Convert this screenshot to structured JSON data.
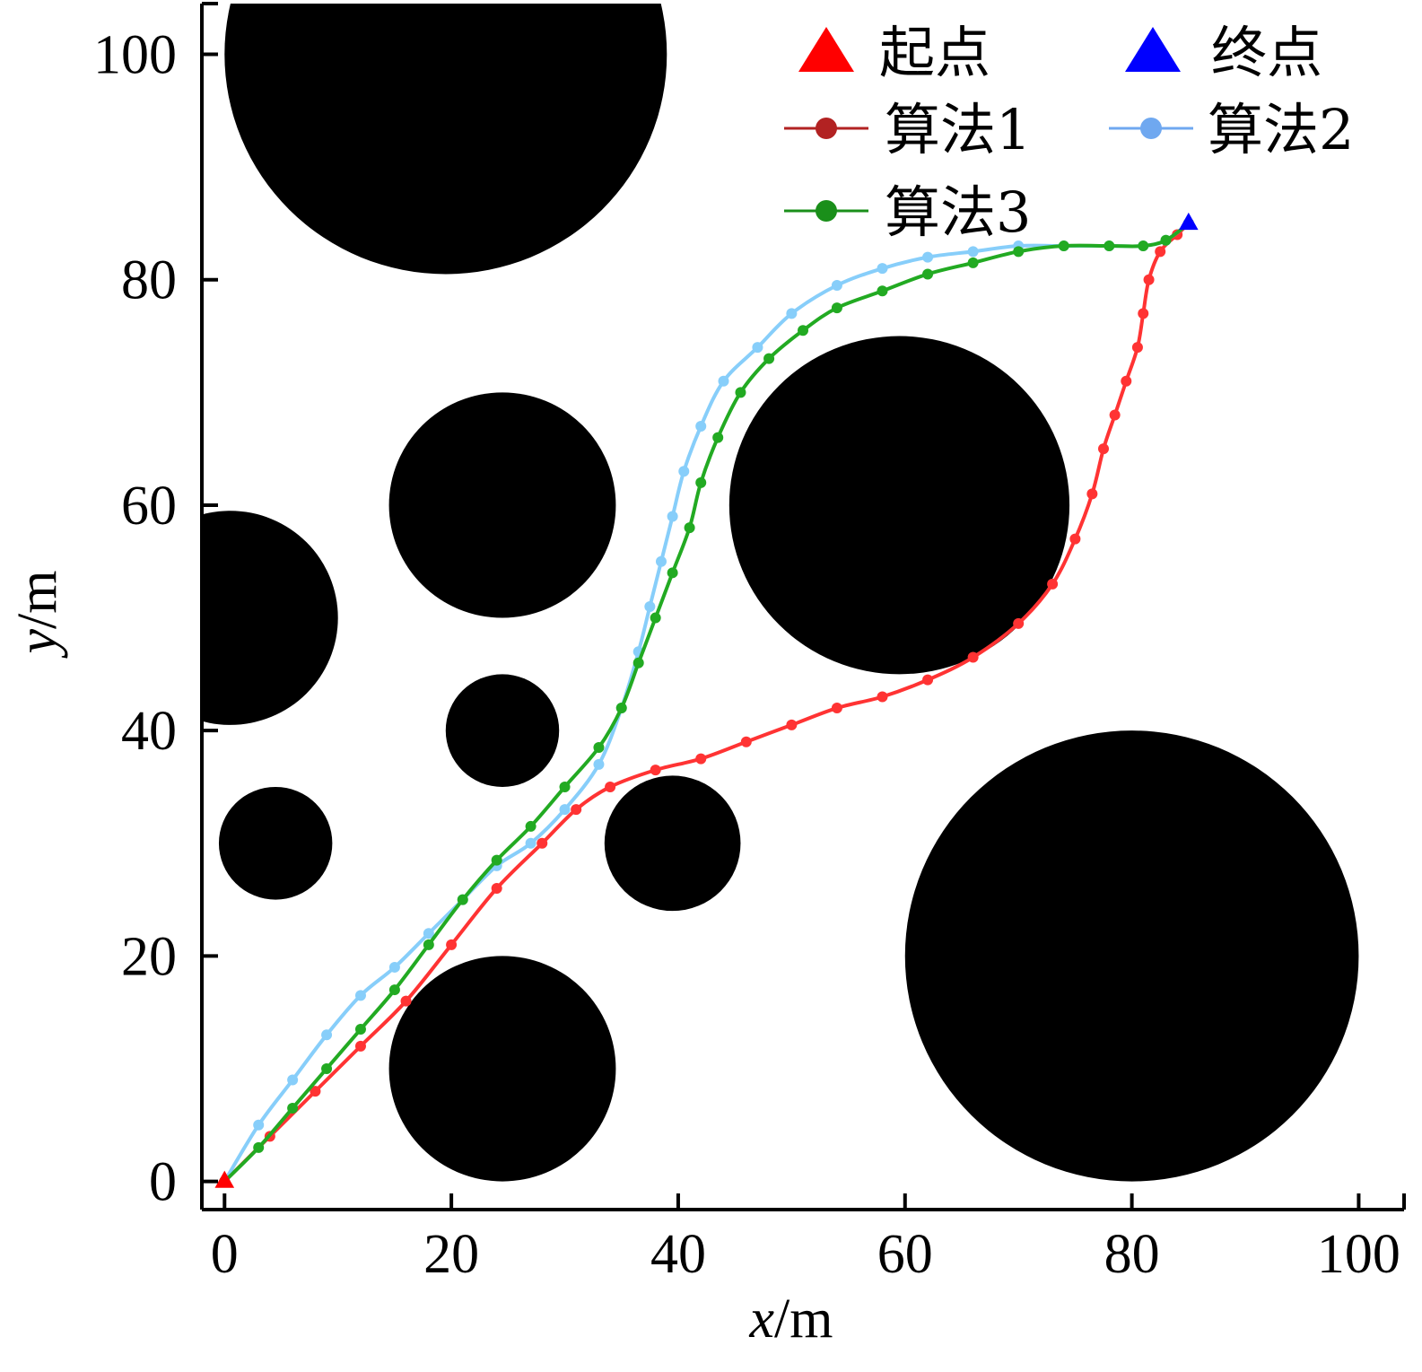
{
  "chart_data": {
    "type": "line",
    "xlabel": {
      "var": "x",
      "unit": "/m"
    },
    "ylabel": {
      "var": "y",
      "unit": "/m"
    },
    "xlim": [
      -2,
      104
    ],
    "ylim": [
      -2.5,
      104.5
    ],
    "xticks": [
      0,
      20,
      40,
      60,
      80,
      100
    ],
    "yticks": [
      0,
      20,
      40,
      60,
      80,
      100
    ],
    "xtick_labels": [
      "0",
      "20",
      "40",
      "60",
      "80",
      "100"
    ],
    "ytick_labels": [
      "0",
      "20",
      "40",
      "60",
      "80",
      "100"
    ],
    "grid": false,
    "legend_position": "top-right",
    "obstacles": [
      {
        "cx": 19.5,
        "cy": 100,
        "r": 19.5
      },
      {
        "cx": 24.5,
        "cy": 60,
        "r": 10
      },
      {
        "cx": 0.5,
        "cy": 50,
        "r": 9.5
      },
      {
        "cx": 24.5,
        "cy": 40,
        "r": 5
      },
      {
        "cx": 4.5,
        "cy": 30,
        "r": 5
      },
      {
        "cx": 39.5,
        "cy": 30,
        "r": 6
      },
      {
        "cx": 24.5,
        "cy": 10,
        "r": 10
      },
      {
        "cx": 59.5,
        "cy": 60,
        "r": 15
      },
      {
        "cx": 80,
        "cy": 20,
        "r": 20
      }
    ],
    "start": {
      "label": "起点",
      "x": 0,
      "y": 0,
      "color": "#ff0000"
    },
    "goal": {
      "label": "终点",
      "x": 85,
      "y": 85,
      "color": "#0000ff"
    },
    "series": [
      {
        "name": "算法1",
        "legend_color": "#b22222",
        "color": "#ff3333",
        "x": [
          0,
          4,
          8,
          12,
          16,
          20,
          24,
          28,
          31,
          34,
          38,
          42,
          46,
          50,
          54,
          58,
          62,
          66,
          70,
          73,
          75,
          76.5,
          77.5,
          78.5,
          79.5,
          80.5,
          81,
          81.5,
          82.5,
          84,
          85
        ],
        "y": [
          0,
          4,
          8,
          12,
          16,
          21,
          26,
          30,
          33,
          35,
          36.5,
          37.5,
          39,
          40.5,
          42,
          43,
          44.5,
          46.5,
          49.5,
          53,
          57,
          61,
          65,
          68,
          71,
          74,
          77,
          80,
          82.5,
          84,
          85
        ]
      },
      {
        "name": "算法2",
        "legend_color": "#6fa8f0",
        "color": "#87cefa",
        "x": [
          0,
          3,
          6,
          9,
          12,
          15,
          18,
          21,
          24,
          27,
          30,
          33,
          35,
          36.5,
          37.5,
          38.5,
          39.5,
          40.5,
          42,
          44,
          47,
          50,
          54,
          58,
          62,
          66,
          70,
          74,
          78,
          81,
          83,
          85
        ],
        "y": [
          0,
          5,
          9,
          13,
          16.5,
          19,
          22,
          25,
          28,
          30,
          33,
          37,
          42,
          47,
          51,
          55,
          59,
          63,
          67,
          71,
          74,
          77,
          79.5,
          81,
          82,
          82.5,
          83,
          83,
          83,
          83,
          83.5,
          85
        ]
      },
      {
        "name": "算法3",
        "legend_color": "#1a8f1a",
        "color": "#22aa22",
        "x": [
          0,
          3,
          6,
          9,
          12,
          15,
          18,
          21,
          24,
          27,
          30,
          33,
          35,
          36.5,
          38,
          39.5,
          41,
          42,
          43.5,
          45.5,
          48,
          51,
          54,
          58,
          62,
          66,
          70,
          74,
          78,
          81,
          83,
          85
        ],
        "y": [
          0,
          3,
          6.5,
          10,
          13.5,
          17,
          21,
          25,
          28.5,
          31.5,
          35,
          38.5,
          42,
          46,
          50,
          54,
          58,
          62,
          66,
          70,
          73,
          75.5,
          77.5,
          79,
          80.5,
          81.5,
          82.5,
          83,
          83,
          83,
          83.5,
          85
        ]
      }
    ]
  }
}
